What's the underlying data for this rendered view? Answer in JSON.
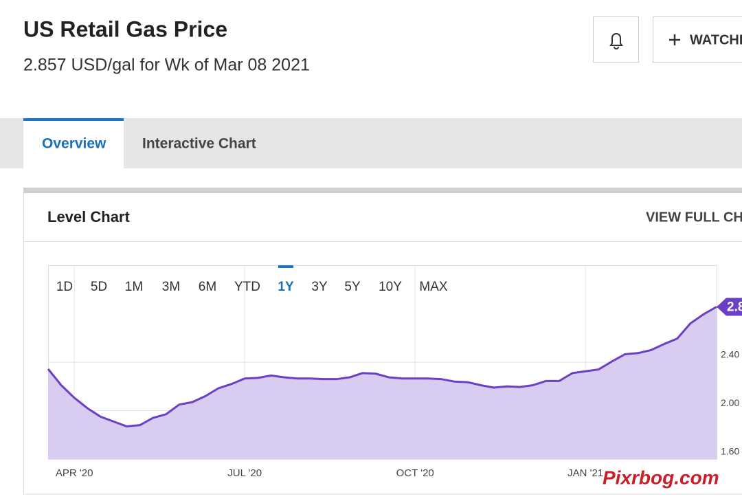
{
  "header": {
    "title": "US Retail Gas Price",
    "subtitle": "2.857 USD/gal for Wk of Mar 08 2021",
    "watchlist_button": "WATCHL"
  },
  "tabs": {
    "items": [
      "Overview",
      "Interactive Chart"
    ],
    "active": 0
  },
  "card": {
    "title": "Level Chart",
    "link": "VIEW FULL CH"
  },
  "ranges": {
    "items": [
      "1D",
      "5D",
      "1M",
      "3M",
      "6M",
      "YTD",
      "1Y",
      "3Y",
      "5Y",
      "10Y",
      "MAX"
    ],
    "active": 6
  },
  "watermark": "Pixrbog.com",
  "chart_data": {
    "type": "area",
    "categories": [
      null,
      null,
      "APR '20",
      null,
      null,
      null,
      null,
      null,
      null,
      null,
      null,
      null,
      null,
      null,
      null,
      "JUL '20",
      null,
      null,
      null,
      null,
      null,
      null,
      null,
      null,
      null,
      null,
      null,
      null,
      "OCT '20",
      null,
      null,
      null,
      null,
      null,
      null,
      null,
      null,
      null,
      null,
      null,
      null,
      "JAN '21",
      null,
      null,
      null,
      null,
      null,
      null,
      null,
      null,
      null,
      null
    ],
    "values": [
      2.344,
      2.21,
      2.106,
      2.02,
      1.95,
      1.91,
      1.87,
      1.88,
      1.94,
      1.97,
      2.05,
      2.07,
      2.12,
      2.185,
      2.22,
      2.265,
      2.27,
      2.29,
      2.275,
      2.265,
      2.265,
      2.26,
      2.26,
      2.275,
      2.31,
      2.305,
      2.275,
      2.265,
      2.265,
      2.265,
      2.26,
      2.24,
      2.235,
      2.21,
      2.19,
      2.2,
      2.195,
      2.21,
      2.245,
      2.245,
      2.31,
      2.325,
      2.34,
      2.405,
      2.465,
      2.475,
      2.5,
      2.55,
      2.595,
      2.72,
      2.795,
      2.857
    ],
    "color": "#6b3fc6",
    "fill_color": "#d8cdf1",
    "ylim": [
      1.6,
      3.2
    ],
    "yticks": [
      {
        "value": 1.6,
        "label": "1.60"
      },
      {
        "value": 2,
        "label": "2.00"
      },
      {
        "value": 2.4,
        "label": "2.40"
      }
    ],
    "grid": true
  }
}
